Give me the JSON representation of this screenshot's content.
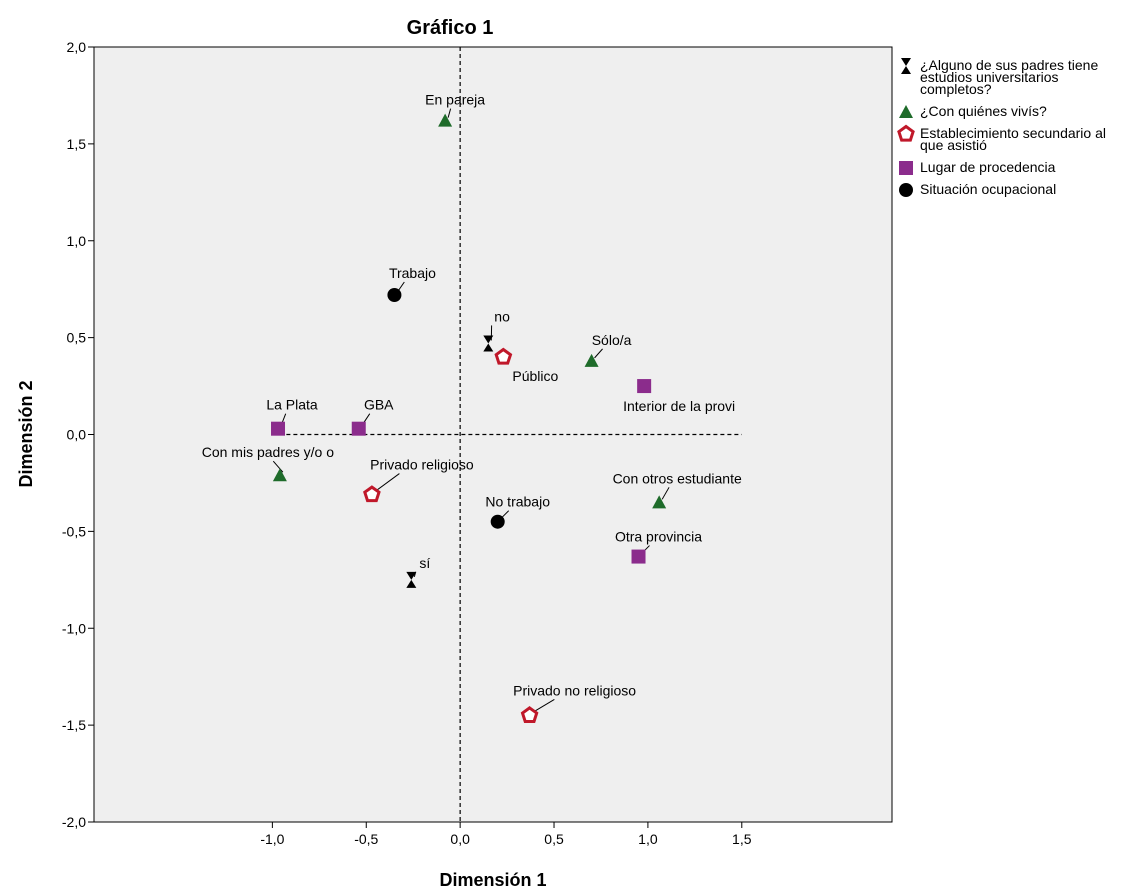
{
  "chart_data": {
    "type": "scatter",
    "title": "Gráfico 1",
    "xlabel": "Dimensión 1",
    "ylabel": "Dimensión 2",
    "xlim": [
      -1.95,
      2.3
    ],
    "ylim": [
      -2.0,
      2.0
    ],
    "xticks": [
      "-1,0",
      "-0,5",
      "0,0",
      "0,5",
      "1,0",
      "1,5"
    ],
    "xtick_values": [
      -1.0,
      -0.5,
      0.0,
      0.5,
      1.0,
      1.5
    ],
    "yticks": [
      "2,0",
      "1,5",
      "1,0",
      "0,5",
      "0,0",
      "-0,5",
      "-1,0",
      "-1,5",
      "-2,0"
    ],
    "ytick_values": [
      2.0,
      1.5,
      1.0,
      0.5,
      0.0,
      -0.5,
      -1.0,
      -1.5,
      -2.0
    ],
    "reference_lines": [
      0,
      0
    ],
    "legend_position": "right",
    "series": [
      {
        "name": "¿Alguno de sus padres tiene estudios universitarios completos?",
        "legend_lines": [
          "¿Alguno de sus padres tiene",
          "estudios universitarios",
          "completos?"
        ],
        "marker": "hourglass",
        "color": "#000000",
        "points": [
          {
            "label": "no",
            "x": 0.15,
            "y": 0.47
          },
          {
            "label": "sí",
            "x": -0.26,
            "y": -0.75
          }
        ]
      },
      {
        "name": "¿Con quiénes vivís?",
        "legend_lines": [
          "¿Con quiénes vivís?"
        ],
        "marker": "triangle",
        "color": "#1e6b2a",
        "points": [
          {
            "label": "En pareja",
            "x": -0.08,
            "y": 1.62
          },
          {
            "label": "Sólo/a",
            "x": 0.7,
            "y": 0.38
          },
          {
            "label": "Con mis padres y/o o",
            "x": -0.96,
            "y": -0.21
          },
          {
            "label": "Con otros estudiante",
            "x": 1.06,
            "y": -0.35
          }
        ]
      },
      {
        "name": "Establecimiento secundario al que asistió",
        "legend_lines": [
          "Establecimiento secundario al",
          "que asistió"
        ],
        "marker": "pentagon",
        "color": "#c0182a",
        "points": [
          {
            "label": "Público",
            "x": 0.23,
            "y": 0.4
          },
          {
            "label": "Privado religioso",
            "x": -0.47,
            "y": -0.31
          },
          {
            "label": "Privado no religioso",
            "x": 0.37,
            "y": -1.45
          }
        ]
      },
      {
        "name": "Lugar de procedencia",
        "legend_lines": [
          "Lugar de procedencia"
        ],
        "marker": "square",
        "color": "#8b2c8c",
        "points": [
          {
            "label": "La Plata",
            "x": -0.97,
            "y": 0.03
          },
          {
            "label": "GBA",
            "x": -0.54,
            "y": 0.03
          },
          {
            "label": "Interior de la provi",
            "x": 0.98,
            "y": 0.25
          },
          {
            "label": "Otra provincia",
            "x": 0.95,
            "y": -0.63
          }
        ]
      },
      {
        "name": "Situación ocupacional",
        "legend_lines": [
          "Situación ocupacional"
        ],
        "marker": "circle",
        "color": "#000000",
        "points": [
          {
            "label": "Trabajo",
            "x": -0.35,
            "y": 0.72
          },
          {
            "label": "No trabajo",
            "x": 0.2,
            "y": -0.45
          }
        ]
      }
    ]
  }
}
